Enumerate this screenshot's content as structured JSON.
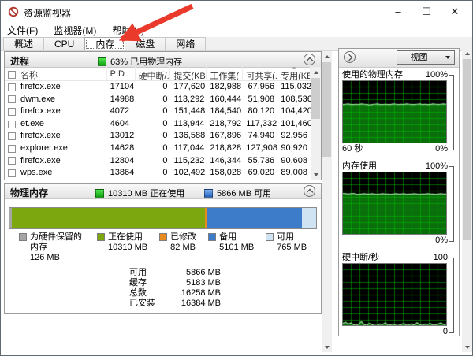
{
  "window": {
    "title": "资源监视器",
    "controls": {
      "minimize": "–",
      "maximize": "☐",
      "close": "✕"
    }
  },
  "menu": {
    "items": [
      "文件(F)",
      "监视器(M)",
      "帮助(H)"
    ]
  },
  "tabs": [
    "概述",
    "CPU",
    "内存",
    "磁盘",
    "网络"
  ],
  "selected_tab": "内存",
  "process_panel": {
    "title": "进程",
    "status": "63% 已用物理内存",
    "columns": [
      "名称",
      "PID",
      "硬中断/...",
      "提交(KB)",
      "工作集(...",
      "可共享(...",
      "专用(KB)"
    ],
    "rows": [
      {
        "name": "firefox.exe",
        "pid": "17104",
        "hard_faults": "0",
        "commit": "177,620",
        "working_set": "182,988",
        "shareable": "67,956",
        "private": "115,032"
      },
      {
        "name": "dwm.exe",
        "pid": "14988",
        "hard_faults": "0",
        "commit": "113,292",
        "working_set": "160,444",
        "shareable": "51,908",
        "private": "108,536"
      },
      {
        "name": "firefox.exe",
        "pid": "4072",
        "hard_faults": "0",
        "commit": "151,448",
        "working_set": "184,540",
        "shareable": "80,120",
        "private": "104,420"
      },
      {
        "name": "et.exe",
        "pid": "4604",
        "hard_faults": "0",
        "commit": "113,944",
        "working_set": "218,792",
        "shareable": "117,332",
        "private": "101,460"
      },
      {
        "name": "firefox.exe",
        "pid": "13012",
        "hard_faults": "0",
        "commit": "136,588",
        "working_set": "167,896",
        "shareable": "74,940",
        "private": "92,956"
      },
      {
        "name": "explorer.exe",
        "pid": "14628",
        "hard_faults": "0",
        "commit": "117,044",
        "working_set": "218,828",
        "shareable": "127,908",
        "private": "90,920"
      },
      {
        "name": "firefox.exe",
        "pid": "12804",
        "hard_faults": "0",
        "commit": "115,232",
        "working_set": "146,344",
        "shareable": "55,736",
        "private": "90,608"
      },
      {
        "name": "wps.exe",
        "pid": "13864",
        "hard_faults": "0",
        "commit": "102,492",
        "working_set": "158,028",
        "shareable": "69,020",
        "private": "89,008"
      }
    ]
  },
  "memory_panel": {
    "title": "物理内存",
    "in_use": "10310 MB 正在使用",
    "available": "5866 MB 可用",
    "total_mb": 16384,
    "segments": [
      {
        "label": "为硬件保留的内存",
        "value": "126 MB",
        "mb": 126,
        "color": "#a6a6a6"
      },
      {
        "label": "正在使用",
        "value": "10310 MB",
        "mb": 10310,
        "color": "#7da70e"
      },
      {
        "label": "已修改",
        "value": "82 MB",
        "mb": 82,
        "color": "#e78b1e"
      },
      {
        "label": "备用",
        "value": "5101 MB",
        "mb": 5101,
        "color": "#3d7cc9"
      },
      {
        "label": "可用",
        "value": "765 MB",
        "mb": 765,
        "color": "#cfe3f3"
      }
    ],
    "summary": [
      {
        "label": "可用",
        "value": "5866 MB"
      },
      {
        "label": "缓存",
        "value": "5183 MB"
      },
      {
        "label": "总数",
        "value": "16258 MB"
      },
      {
        "label": "已安装",
        "value": "16384 MB"
      }
    ]
  },
  "right_panel": {
    "view_button": "视图"
  },
  "chart_data": [
    {
      "type": "area",
      "title": "使用的物理内存",
      "ymax_label": "100%",
      "ymin_label": "0%",
      "xlabel": "60 秒",
      "ylim": [
        0,
        100
      ],
      "grid": true,
      "legend_position": "none",
      "values": [
        62,
        62.5,
        63,
        62,
        62,
        62.5,
        62,
        63,
        62.5,
        62,
        61.5,
        62,
        62.5,
        63,
        62,
        62,
        62.5,
        62,
        62,
        63,
        62.5,
        62,
        62.5,
        62,
        63,
        62.5,
        62,
        62,
        62.5,
        63,
        62,
        62.5,
        62,
        62,
        63,
        62.5,
        62,
        62.5,
        63,
        62.5
      ]
    },
    {
      "type": "area",
      "title": "内存使用",
      "ymax_label": "100%",
      "ymin_label": "0%",
      "xlabel": "",
      "ylim": [
        0,
        100
      ],
      "grid": true,
      "legend_position": "none",
      "values": [
        66,
        65.5,
        65,
        65.5,
        66,
        65,
        64.5,
        65,
        65.5,
        65,
        65,
        65.5,
        65,
        64.5,
        65,
        65.5,
        65,
        65,
        64.5,
        65,
        65.5,
        65,
        65,
        65.5,
        64.5,
        65,
        65,
        65.5,
        65,
        64.5,
        65,
        65,
        65.5,
        65,
        65,
        64.5,
        65,
        65.5,
        65,
        65
      ]
    },
    {
      "type": "area",
      "title": "硬中断/秒",
      "ymax_label": "100",
      "ymin_label": "0",
      "xlabel": "",
      "ylim": [
        0,
        100
      ],
      "grid": true,
      "legend_position": "none",
      "values": [
        3,
        5,
        2,
        4,
        1,
        0,
        2,
        6,
        1,
        0,
        3,
        1,
        0,
        0,
        2,
        1,
        4,
        0,
        1,
        2,
        0,
        0,
        1,
        3,
        0,
        1,
        2,
        0,
        4,
        1,
        0,
        2,
        1,
        3,
        0,
        1,
        2,
        4,
        1,
        2
      ]
    }
  ]
}
